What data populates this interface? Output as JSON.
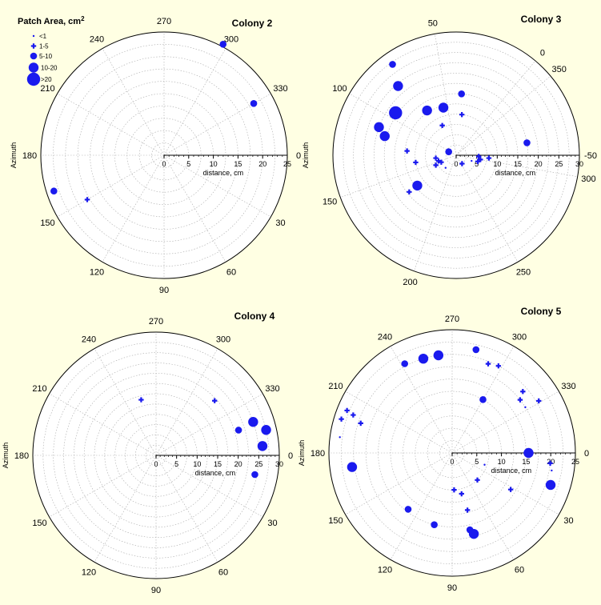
{
  "legend": {
    "title": "Patch Area, cm",
    "title_sup": "2",
    "entries": [
      {
        "label": "<1",
        "size": 0
      },
      {
        "label": "1-5",
        "size": 1
      },
      {
        "label": "5-10",
        "size": 2
      },
      {
        "label": "10-20",
        "size": 3
      },
      {
        "label": ">20",
        "size": 4
      }
    ]
  },
  "colors": {
    "marker": "#1a1aee",
    "grid": "#aaaaaa",
    "background": "#ffffe3",
    "plot_bg": "#ffffff"
  },
  "chart_data": [
    {
      "type": "scatter",
      "title": "Colony 2",
      "angle_ticks": [
        "270",
        "300",
        "330",
        "0",
        "30",
        "60",
        "90",
        "120",
        "150",
        "180",
        "210",
        "240"
      ],
      "radial_ticks": [
        "0",
        "5",
        "10",
        "15",
        "20",
        "25"
      ],
      "rmax": 25,
      "ylabel": "Azimuth",
      "xlabel": "distance, cm",
      "grid": true,
      "points": [
        {
          "az": 298,
          "r": 25.5,
          "size": 2
        },
        {
          "az": 330,
          "r": 21,
          "size": 2
        },
        {
          "az": 150,
          "r": 18,
          "size": 1
        },
        {
          "az": 162,
          "r": 23.5,
          "size": 2
        }
      ]
    },
    {
      "type": "scatter",
      "title": "Colony 3",
      "angle_ticks": [
        "50",
        "0",
        "-50",
        "350",
        "300",
        "250",
        "200",
        "150",
        "100"
      ],
      "radial_ticks": [
        "0",
        "5",
        "10",
        "15",
        "20",
        "25",
        "30"
      ],
      "rmax": 30,
      "ylabel": "Azimuth",
      "xlabel": "distance, cm",
      "grid": true,
      "points": [
        {
          "az": 320,
          "r": 17.5,
          "size": 2
        },
        {
          "az": 300,
          "r": 6,
          "size": 1
        },
        {
          "az": 305,
          "r": 8,
          "size": 1
        },
        {
          "az": 290,
          "r": 4,
          "size": 0
        },
        {
          "az": 307,
          "r": 5.5,
          "size": 1
        },
        {
          "az": 294,
          "r": 5.5,
          "size": 1
        },
        {
          "az": 255,
          "r": 2.5,
          "size": 1
        },
        {
          "az": 168,
          "r": 14.5,
          "size": 1
        },
        {
          "az": 180,
          "r": 4,
          "size": 0
        },
        {
          "az": 148,
          "r": 4.5,
          "size": 1
        },
        {
          "az": 156,
          "r": 5.5,
          "size": 1
        },
        {
          "az": 168,
          "r": 12,
          "size": 3
        },
        {
          "az": 155,
          "r": 4,
          "size": 1
        },
        {
          "az": 105,
          "r": 2,
          "size": 2
        },
        {
          "az": 138,
          "r": 5,
          "size": 1
        },
        {
          "az": 95,
          "r": 2.5,
          "size": 0
        },
        {
          "az": 32,
          "r": 10,
          "size": 1
        },
        {
          "az": 65,
          "r": 8,
          "size": 1
        },
        {
          "az": 55,
          "r": 12,
          "size": 3
        },
        {
          "az": 35,
          "r": 15,
          "size": 2
        },
        {
          "az": 73,
          "r": 13,
          "size": 3
        },
        {
          "az": 140,
          "r": 10,
          "size": 1
        },
        {
          "az": 125,
          "r": 12,
          "size": 1
        },
        {
          "az": 115,
          "r": 18,
          "size": 3
        },
        {
          "az": 110,
          "r": 20,
          "size": 3
        },
        {
          "az": 95,
          "r": 18,
          "size": 4
        },
        {
          "az": 80,
          "r": 22,
          "size": 3
        },
        {
          "az": 75,
          "r": 27,
          "size": 2
        }
      ]
    },
    {
      "type": "scatter",
      "title": "Colony 4",
      "angle_ticks": [
        "270",
        "300",
        "330",
        "0",
        "30",
        "60",
        "90",
        "120",
        "150",
        "180",
        "210",
        "240"
      ],
      "radial_ticks": [
        "0",
        "5",
        "10",
        "15",
        "20",
        "25",
        "30"
      ],
      "rmax": 30,
      "ylabel": "Azimuth",
      "xlabel": "distance, cm",
      "grid": true,
      "points": [
        {
          "az": 255,
          "r": 14,
          "size": 1
        },
        {
          "az": 317,
          "r": 19.5,
          "size": 1
        },
        {
          "az": 343,
          "r": 21,
          "size": 2
        },
        {
          "az": 341,
          "r": 25,
          "size": 3
        },
        {
          "az": 347,
          "r": 27.5,
          "size": 3
        },
        {
          "az": 355,
          "r": 26,
          "size": 3
        },
        {
          "az": 11,
          "r": 24.5,
          "size": 2
        }
      ]
    },
    {
      "type": "scatter",
      "title": "Colony 5",
      "angle_ticks": [
        "270",
        "300",
        "330",
        "0",
        "30",
        "60",
        "90",
        "120",
        "150",
        "180",
        "210",
        "240"
      ],
      "radial_ticks": [
        "0",
        "5",
        "10",
        "15",
        "20",
        "25"
      ],
      "rmax": 25,
      "ylabel": "Azimuth",
      "xlabel": "distance, cm",
      "grid": true,
      "points": [
        {
          "az": 283,
          "r": 21.5,
          "size": 2
        },
        {
          "az": 292,
          "r": 19.5,
          "size": 1
        },
        {
          "az": 298,
          "r": 20,
          "size": 1
        },
        {
          "az": 319,
          "r": 19,
          "size": 1
        },
        {
          "az": 322,
          "r": 17.5,
          "size": 1
        },
        {
          "az": 328,
          "r": 17.5,
          "size": 0
        },
        {
          "az": 329,
          "r": 20.5,
          "size": 1
        },
        {
          "az": 300,
          "r": 12.5,
          "size": 2
        },
        {
          "az": 262,
          "r": 20,
          "size": 3
        },
        {
          "az": 253,
          "r": 20,
          "size": 3
        },
        {
          "az": 242,
          "r": 20.5,
          "size": 2
        },
        {
          "az": 202,
          "r": 23,
          "size": 1
        },
        {
          "az": 201,
          "r": 21.5,
          "size": 1
        },
        {
          "az": 198,
          "r": 19.5,
          "size": 1
        },
        {
          "az": 197,
          "r": 23.5,
          "size": 1
        },
        {
          "az": 188,
          "r": 23,
          "size": 0
        },
        {
          "az": 172,
          "r": 20.5,
          "size": 3
        },
        {
          "az": 0,
          "r": 15.5,
          "size": 3
        },
        {
          "az": 6,
          "r": 20,
          "size": 1
        },
        {
          "az": 10,
          "r": 20.5,
          "size": 0
        },
        {
          "az": 18,
          "r": 21,
          "size": 3
        },
        {
          "az": 20,
          "r": 7,
          "size": 0
        },
        {
          "az": 47,
          "r": 7.5,
          "size": 1
        },
        {
          "az": 32,
          "r": 14,
          "size": 1
        },
        {
          "az": 77,
          "r": 8.5,
          "size": 1
        },
        {
          "az": 87,
          "r": 7.5,
          "size": 1
        },
        {
          "az": 75,
          "r": 12,
          "size": 1
        },
        {
          "az": 77,
          "r": 16,
          "size": 2
        },
        {
          "az": 75,
          "r": 17,
          "size": 3
        },
        {
          "az": 104,
          "r": 15,
          "size": 2
        },
        {
          "az": 128,
          "r": 14.5,
          "size": 2
        }
      ]
    }
  ]
}
